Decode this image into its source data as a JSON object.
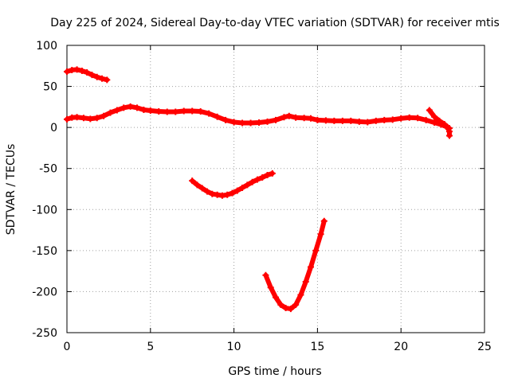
{
  "chart_data": {
    "type": "scatter",
    "title": "Day 225 of 2024, Sidereal Day-to-day VTEC variation (SDTVAR) for receiver mtis",
    "xlabel": "GPS time / hours",
    "ylabel": "SDTVAR / TECUs",
    "xlim": [
      0,
      25
    ],
    "ylim": [
      -250,
      100
    ],
    "xticks": [
      0,
      5,
      10,
      15,
      20,
      25
    ],
    "yticks": [
      -250,
      -200,
      -150,
      -100,
      -50,
      0,
      50,
      100
    ],
    "xtick_labels": [
      "0",
      "5",
      "10",
      "15",
      "20",
      "25"
    ],
    "ytick_labels": [
      "-250",
      "-200",
      "-150",
      "-100",
      "-50",
      "0",
      "50",
      "100"
    ],
    "grid": true,
    "marker": "plus",
    "color": "#ff0000",
    "series": [
      {
        "points": [
          [
            0.0,
            68
          ],
          [
            0.3,
            70
          ],
          [
            0.6,
            70.5
          ],
          [
            0.9,
            69
          ],
          [
            1.2,
            67
          ],
          [
            1.5,
            64
          ],
          [
            1.8,
            61.5
          ],
          [
            2.1,
            59.5
          ],
          [
            2.4,
            58
          ]
        ]
      },
      {
        "points": [
          [
            0.0,
            10
          ],
          [
            0.3,
            12
          ],
          [
            0.6,
            12.5
          ],
          [
            1.0,
            11.5
          ],
          [
            1.4,
            10.5
          ],
          [
            1.8,
            11.5
          ],
          [
            2.2,
            14
          ],
          [
            2.6,
            18
          ],
          [
            3.0,
            21
          ],
          [
            3.4,
            24
          ],
          [
            3.8,
            25.5
          ],
          [
            4.2,
            24
          ],
          [
            4.6,
            21.5
          ],
          [
            5.0,
            20.5
          ],
          [
            5.5,
            19.5
          ],
          [
            6.0,
            19
          ],
          [
            6.5,
            19
          ],
          [
            7.0,
            20
          ],
          [
            7.5,
            20
          ],
          [
            8.0,
            19.5
          ],
          [
            8.5,
            17
          ],
          [
            9.0,
            13
          ],
          [
            9.5,
            9
          ],
          [
            10.0,
            6.5
          ],
          [
            10.5,
            5.5
          ],
          [
            11.0,
            5.5
          ],
          [
            11.5,
            6
          ],
          [
            12.0,
            7
          ],
          [
            12.5,
            9
          ],
          [
            13.0,
            12.5
          ],
          [
            13.3,
            14
          ],
          [
            13.7,
            12
          ],
          [
            14.2,
            11.5
          ],
          [
            14.6,
            11
          ],
          [
            15.0,
            9
          ],
          [
            15.5,
            8.5
          ],
          [
            16.0,
            8
          ],
          [
            16.5,
            8
          ],
          [
            17.0,
            8
          ],
          [
            17.5,
            7
          ],
          [
            18.0,
            6.5
          ],
          [
            18.5,
            8
          ],
          [
            19.0,
            9
          ],
          [
            19.5,
            9.5
          ],
          [
            20.0,
            11
          ],
          [
            20.5,
            12
          ],
          [
            21.0,
            11.5
          ],
          [
            21.5,
            9
          ],
          [
            22.0,
            6
          ],
          [
            22.4,
            3.5
          ],
          [
            22.7,
            1
          ],
          [
            22.9,
            -1
          ]
        ]
      },
      {
        "points": [
          [
            21.7,
            21
          ],
          [
            22.0,
            13
          ],
          [
            22.3,
            8
          ],
          [
            22.6,
            4
          ],
          [
            22.8,
            0
          ],
          [
            22.9,
            -5
          ],
          [
            22.9,
            -10
          ]
        ]
      },
      {
        "points": [
          [
            7.5,
            -65
          ],
          [
            7.8,
            -70
          ],
          [
            8.1,
            -74
          ],
          [
            8.4,
            -78
          ],
          [
            8.7,
            -81
          ],
          [
            9.0,
            -82
          ],
          [
            9.3,
            -83
          ],
          [
            9.6,
            -82
          ],
          [
            9.9,
            -80
          ],
          [
            10.2,
            -77
          ],
          [
            10.5,
            -73.5
          ],
          [
            10.8,
            -70
          ],
          [
            11.1,
            -66.5
          ],
          [
            11.4,
            -63.5
          ],
          [
            11.7,
            -61
          ],
          [
            12.0,
            -58
          ],
          [
            12.3,
            -56
          ]
        ]
      },
      {
        "points": [
          [
            11.9,
            -180
          ],
          [
            12.2,
            -195
          ],
          [
            12.5,
            -207
          ],
          [
            12.8,
            -216
          ],
          [
            13.1,
            -220
          ],
          [
            13.4,
            -221
          ],
          [
            13.7,
            -216
          ],
          [
            14.0,
            -204
          ],
          [
            14.3,
            -188
          ],
          [
            14.6,
            -170
          ],
          [
            14.9,
            -150
          ],
          [
            15.2,
            -130
          ],
          [
            15.4,
            -114
          ]
        ]
      }
    ]
  }
}
